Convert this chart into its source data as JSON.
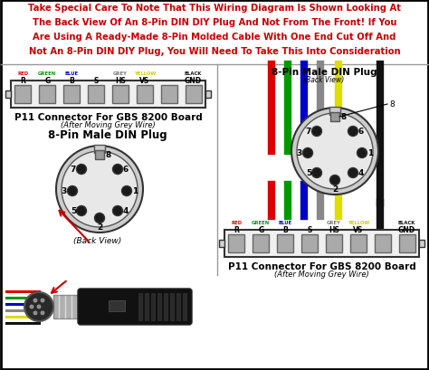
{
  "title_line1": "Take Special Care To Note That This Wiring Diagram Is Shown Looking At",
  "title_line2": "The Back View Of An 8-Pin DIN DIY Plug And Not From The Front! If You",
  "title_line3": "Are Using A Ready-Made 8-Pin Molded Cable With One End Cut Off And",
  "title_line4": "Not An 8-Pin DIN DIY Plug, You Will Need To Take This Into Consideration",
  "title_color": "#cc0000",
  "bg_color": "#f5f5f5",
  "panel_bg": "#ffffff",
  "border_color": "#000000",
  "left_connector_label": "P11 Connector For GBS 8200 Board",
  "left_connector_sublabel": "(After Moving Grey Wire)",
  "right_connector_label": "P11 Connector For GBS 8200 Board",
  "right_connector_sublabel": "(After Moving Grey Wire)",
  "din_plug_title_left": "8-Pin Male DIN Plug",
  "din_plug_title_right": "8-Pin Male DIN Plug",
  "din_back_view": "(Back View)",
  "label_tops": [
    "RED",
    "GREEN",
    "BLUE",
    "",
    "GREY",
    "YELLOW",
    "",
    "BLACK"
  ],
  "label_mids": [
    "R",
    "G",
    "B",
    "S",
    "HS",
    "VS",
    "",
    "GND"
  ],
  "label_colors": [
    "#dd0000",
    "#009900",
    "#0000cc",
    "#555555",
    "#777777",
    "#cccc00",
    "#555555",
    "#111111"
  ],
  "wire_colors_right": [
    "#dd0000",
    "#009900",
    "#0000cc",
    "#888888",
    "#dddd00",
    "#111111"
  ],
  "pin_dot_color": "#1a1a1a",
  "pin_label_color": "#111111",
  "connector_slot_color": "#aaaaaa",
  "connector_slot_edge": "#666666"
}
